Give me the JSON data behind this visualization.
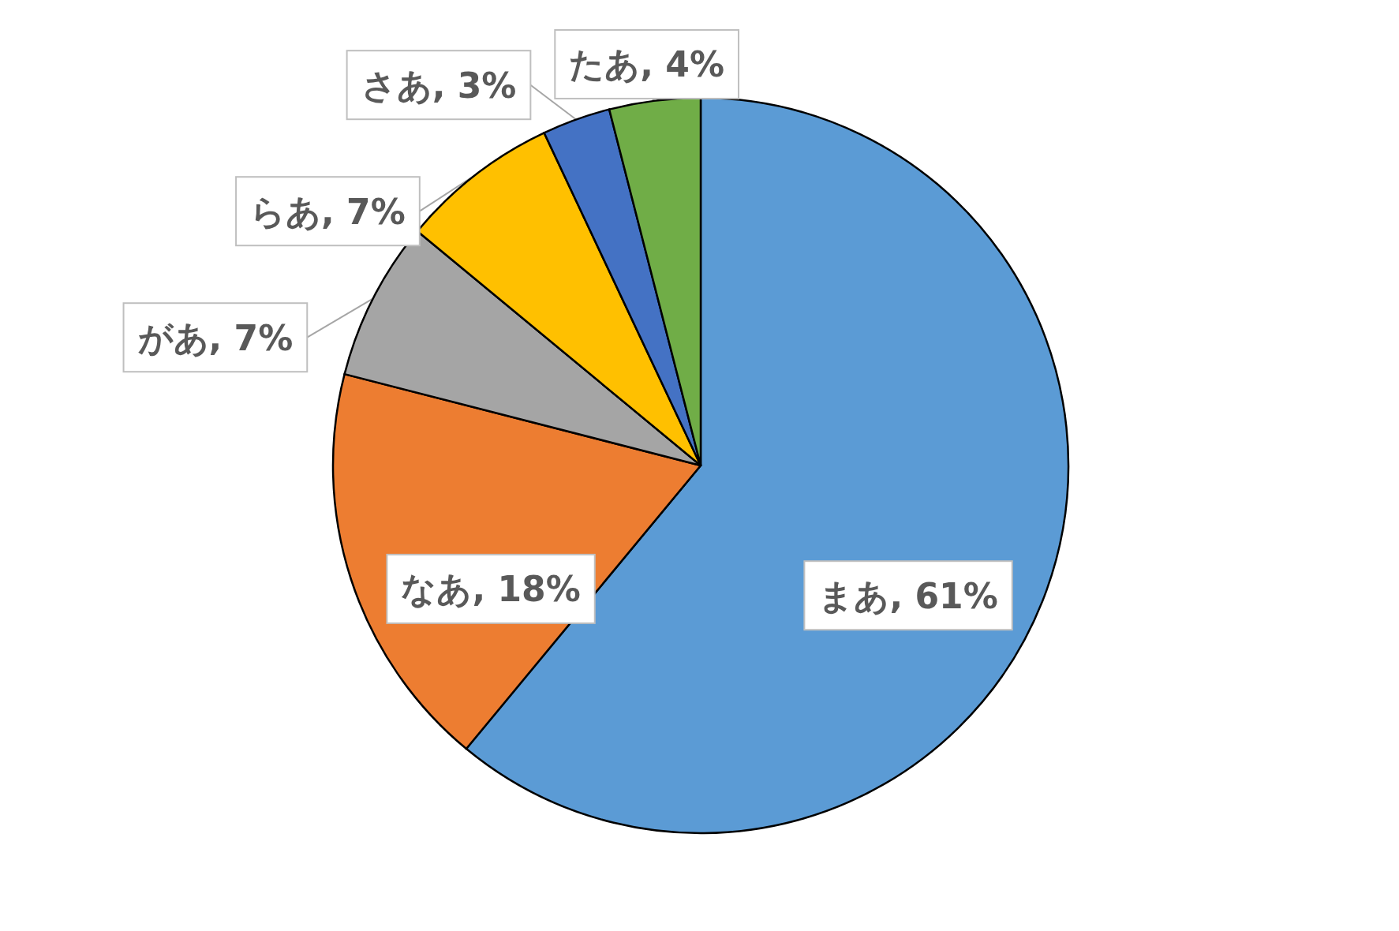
{
  "chart_data": {
    "type": "pie",
    "categories": [
      "まあ",
      "なあ",
      "があ",
      "らあ",
      "さあ",
      "たあ"
    ],
    "values": [
      61,
      18,
      7,
      7,
      3,
      4
    ],
    "colors": [
      "#5b9bd5",
      "#ed7d31",
      "#a5a5a5",
      "#ffc000",
      "#4472c4",
      "#70ad47"
    ],
    "value_labels": [
      ", 61%",
      ", 18%",
      ", 7%",
      ", 7%",
      ", 3%",
      ", 4%"
    ]
  }
}
